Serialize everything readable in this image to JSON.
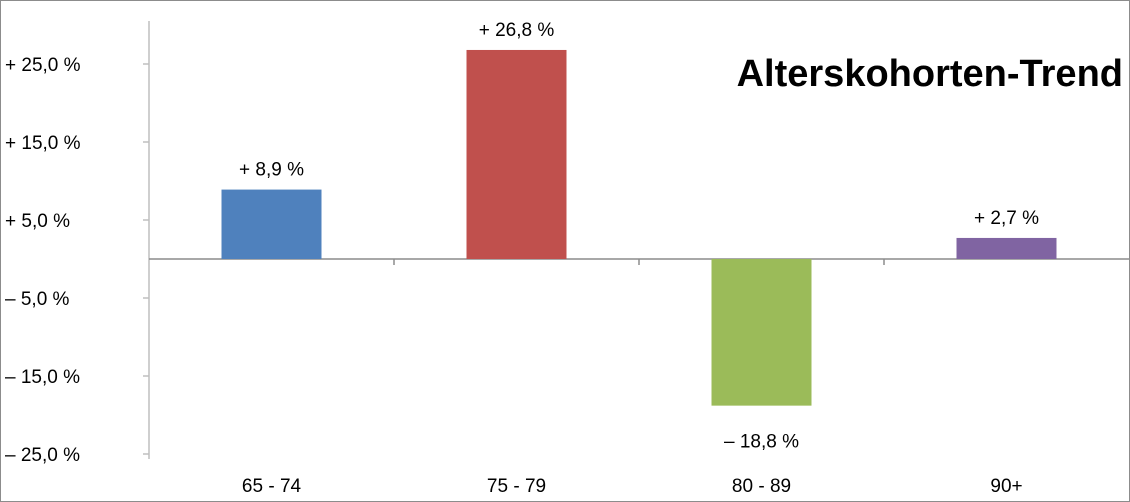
{
  "chart_data": {
    "type": "bar",
    "title": "Alterskohorten-Trend",
    "xlabel": "",
    "ylabel": "",
    "categories": [
      "65 - 74",
      "75 - 79",
      "80 - 89",
      "90+"
    ],
    "values": [
      8.9,
      26.8,
      -18.8,
      2.7
    ],
    "data_labels": [
      "+  8,9 %",
      "+ 26,8 %",
      "– 18,8 %",
      "+  2,7 %"
    ],
    "colors": [
      "#4f81bd",
      "#c0504d",
      "#9bbb59",
      "#8064a2"
    ],
    "ylim": [
      -25,
      25
    ],
    "yticks": [
      25,
      15,
      5,
      -5,
      -15,
      -25
    ],
    "ytick_labels": [
      "+ 25,0 %",
      "+ 15,0 %",
      "+  5,0 %",
      "–  5,0 %",
      "– 15,0 %",
      "– 25,0 %"
    ],
    "grid": false,
    "legend": "none"
  }
}
